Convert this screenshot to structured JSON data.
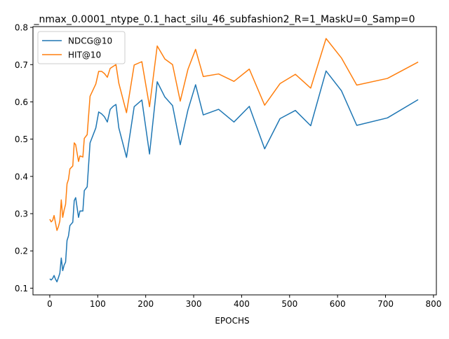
{
  "chart_data": {
    "type": "line",
    "title": "_nmax_0.0001_ntype_0.1_hact_silu_46_subfashion2_R=1_MaskU=0_Samp=0",
    "xlabel": "EPOCHS",
    "ylabel": "",
    "xlim": [
      -35,
      806
    ],
    "ylim": [
      0.082,
      0.802
    ],
    "xticks": [
      0,
      100,
      200,
      300,
      400,
      500,
      600,
      700,
      800
    ],
    "yticks": [
      0.1,
      0.2,
      0.3,
      0.4,
      0.5,
      0.6,
      0.7,
      0.8
    ],
    "grid": false,
    "legend_position": "top-left",
    "series": [
      {
        "name": "NDCG@10",
        "color": "#1f77b4",
        "points": [
          [
            0,
            0.125
          ],
          [
            3,
            0.122
          ],
          [
            6,
            0.126
          ],
          [
            9,
            0.134
          ],
          [
            12,
            0.124
          ],
          [
            15,
            0.117
          ],
          [
            18,
            0.128
          ],
          [
            21,
            0.14
          ],
          [
            24,
            0.181
          ],
          [
            27,
            0.147
          ],
          [
            30,
            0.162
          ],
          [
            33,
            0.17
          ],
          [
            36,
            0.228
          ],
          [
            39,
            0.24
          ],
          [
            42,
            0.268
          ],
          [
            48,
            0.277
          ],
          [
            51,
            0.335
          ],
          [
            54,
            0.343
          ],
          [
            60,
            0.29
          ],
          [
            63,
            0.307
          ],
          [
            69,
            0.307
          ],
          [
            72,
            0.362
          ],
          [
            78,
            0.372
          ],
          [
            84,
            0.49
          ],
          [
            96,
            0.53
          ],
          [
            102,
            0.573
          ],
          [
            108,
            0.568
          ],
          [
            114,
            0.56
          ],
          [
            120,
            0.546
          ],
          [
            126,
            0.58
          ],
          [
            132,
            0.588
          ],
          [
            138,
            0.593
          ],
          [
            144,
            0.53
          ],
          [
            160,
            0.451
          ],
          [
            176,
            0.587
          ],
          [
            192,
            0.605
          ],
          [
            208,
            0.46
          ],
          [
            224,
            0.654
          ],
          [
            240,
            0.613
          ],
          [
            256,
            0.59
          ],
          [
            272,
            0.485
          ],
          [
            288,
            0.578
          ],
          [
            304,
            0.646
          ],
          [
            320,
            0.565
          ],
          [
            352,
            0.58
          ],
          [
            384,
            0.546
          ],
          [
            416,
            0.588
          ],
          [
            448,
            0.474
          ],
          [
            480,
            0.555
          ],
          [
            512,
            0.577
          ],
          [
            544,
            0.536
          ],
          [
            576,
            0.683
          ],
          [
            608,
            0.63
          ],
          [
            640,
            0.537
          ],
          [
            704,
            0.557
          ],
          [
            768,
            0.606
          ]
        ]
      },
      {
        "name": "HIT@10",
        "color": "#ff7f0e",
        "points": [
          [
            0,
            0.285
          ],
          [
            3,
            0.278
          ],
          [
            6,
            0.282
          ],
          [
            9,
            0.295
          ],
          [
            12,
            0.275
          ],
          [
            15,
            0.255
          ],
          [
            18,
            0.265
          ],
          [
            21,
            0.28
          ],
          [
            24,
            0.337
          ],
          [
            27,
            0.29
          ],
          [
            30,
            0.31
          ],
          [
            33,
            0.325
          ],
          [
            36,
            0.38
          ],
          [
            39,
            0.392
          ],
          [
            42,
            0.42
          ],
          [
            48,
            0.428
          ],
          [
            51,
            0.49
          ],
          [
            54,
            0.485
          ],
          [
            60,
            0.44
          ],
          [
            63,
            0.455
          ],
          [
            69,
            0.452
          ],
          [
            72,
            0.502
          ],
          [
            78,
            0.512
          ],
          [
            84,
            0.615
          ],
          [
            96,
            0.648
          ],
          [
            102,
            0.682
          ],
          [
            108,
            0.682
          ],
          [
            114,
            0.676
          ],
          [
            120,
            0.666
          ],
          [
            126,
            0.69
          ],
          [
            132,
            0.695
          ],
          [
            138,
            0.7
          ],
          [
            144,
            0.65
          ],
          [
            160,
            0.571
          ],
          [
            176,
            0.699
          ],
          [
            192,
            0.708
          ],
          [
            208,
            0.587
          ],
          [
            224,
            0.75
          ],
          [
            240,
            0.715
          ],
          [
            256,
            0.7
          ],
          [
            272,
            0.602
          ],
          [
            288,
            0.687
          ],
          [
            304,
            0.741
          ],
          [
            320,
            0.668
          ],
          [
            352,
            0.675
          ],
          [
            384,
            0.655
          ],
          [
            416,
            0.688
          ],
          [
            448,
            0.591
          ],
          [
            480,
            0.649
          ],
          [
            512,
            0.674
          ],
          [
            544,
            0.637
          ],
          [
            576,
            0.77
          ],
          [
            608,
            0.718
          ],
          [
            640,
            0.645
          ],
          [
            704,
            0.663
          ],
          [
            768,
            0.707
          ]
        ]
      }
    ]
  }
}
